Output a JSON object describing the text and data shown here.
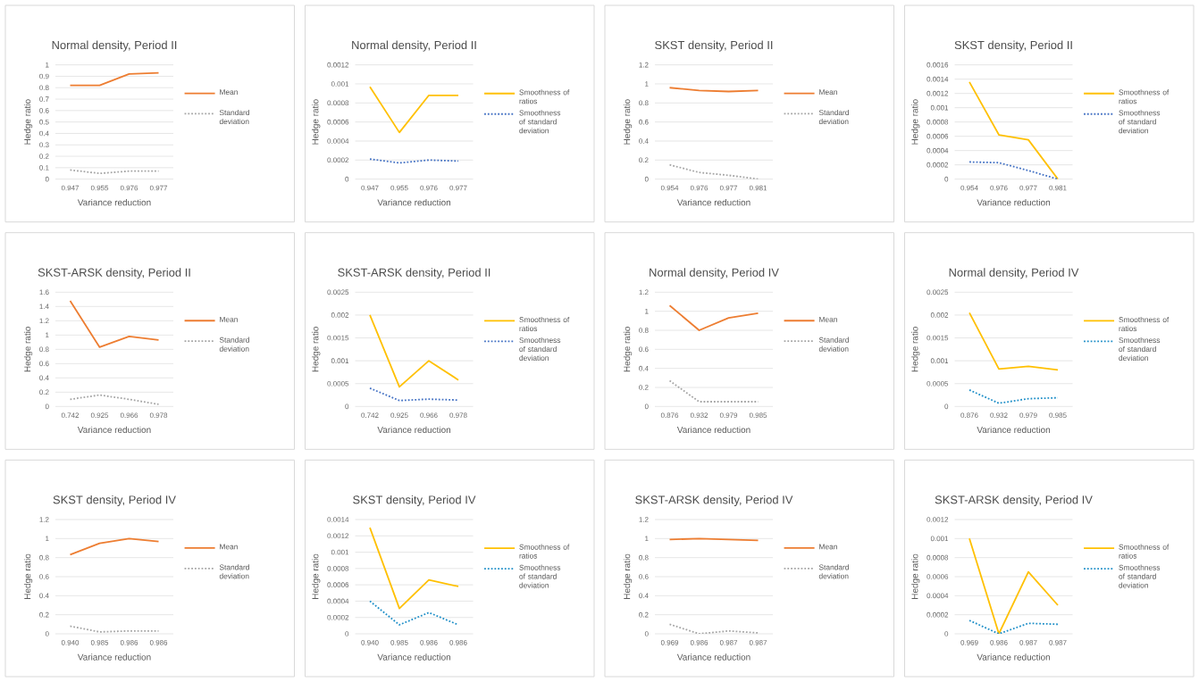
{
  "chart_data": [
    {
      "type": "line",
      "title": "Normal density, Period II",
      "xlabel": "Variance reduction",
      "ylabel": "Hedge ratio",
      "categories": [
        "0.947",
        "0.955",
        "0.976",
        "0.977"
      ],
      "ylim": [
        0,
        1
      ],
      "yticks": [
        0,
        0.1,
        0.2,
        0.3,
        0.4,
        0.5,
        0.6,
        0.7,
        0.8,
        0.9,
        1
      ],
      "grid": "y",
      "legend": "right",
      "marker": "none",
      "series": [
        {
          "name": "Mean",
          "color": "#ed7d31",
          "line_style": "solid",
          "values": [
            0.82,
            0.82,
            0.92,
            0.93
          ]
        },
        {
          "name": "Standard deviation",
          "color": "#a5a5a5",
          "line_style": "dotted",
          "values": [
            0.08,
            0.05,
            0.07,
            0.07
          ]
        }
      ]
    },
    {
      "type": "line",
      "title": "Normal density, Period II",
      "xlabel": "Variance reduction",
      "ylabel": "Hedge ratio",
      "categories": [
        "0.947",
        "0.955",
        "0.976",
        "0.977"
      ],
      "ylim": [
        0,
        0.0012
      ],
      "yticks": [
        0,
        0.0002,
        0.0004,
        0.0006,
        0.0008,
        0.001,
        0.0012
      ],
      "grid": "y",
      "legend": "right",
      "marker": "none",
      "series": [
        {
          "name": "Smoothness of ratios",
          "color": "#ffc000",
          "line_style": "solid",
          "values": [
            0.00097,
            0.00049,
            0.00088,
            0.00088
          ]
        },
        {
          "name": "Smoothness of standard deviation",
          "color": "#4472c4",
          "line_style": "dotted",
          "values": [
            0.00021,
            0.00017,
            0.0002,
            0.00019
          ]
        }
      ]
    },
    {
      "type": "line",
      "title": "SKST density, Period II",
      "xlabel": "Variance reduction",
      "ylabel": "Hedge ratio",
      "categories": [
        "0.954",
        "0.976",
        "0.977",
        "0.981"
      ],
      "ylim": [
        0,
        1.2
      ],
      "yticks": [
        0,
        0.2,
        0.4,
        0.6,
        0.8,
        1,
        1.2
      ],
      "grid": "y",
      "legend": "right",
      "marker": "none",
      "series": [
        {
          "name": "Mean",
          "color": "#ed7d31",
          "line_style": "solid",
          "values": [
            0.96,
            0.93,
            0.92,
            0.93
          ]
        },
        {
          "name": "Standard deviation",
          "color": "#a5a5a5",
          "line_style": "dotted",
          "values": [
            0.15,
            0.07,
            0.04,
            0.0
          ]
        }
      ]
    },
    {
      "type": "line",
      "title": "SKST density, Period II",
      "xlabel": "Variance reduction",
      "ylabel": "Hedge ratio",
      "categories": [
        "0.954",
        "0.976",
        "0.977",
        "0.981"
      ],
      "ylim": [
        0,
        0.0016
      ],
      "yticks": [
        0,
        0.0002,
        0.0004,
        0.0006,
        0.0008,
        0.001,
        0.0012,
        0.0014,
        0.0016
      ],
      "grid": "y",
      "legend": "right",
      "marker": "none",
      "series": [
        {
          "name": "Smoothness of ratios",
          "color": "#ffc000",
          "line_style": "solid",
          "values": [
            0.00136,
            0.00062,
            0.00055,
            0.0
          ]
        },
        {
          "name": "Smoothness of standard deviation",
          "color": "#4472c4",
          "line_style": "dotted",
          "values": [
            0.00024,
            0.00023,
            0.00012,
            0.0
          ]
        }
      ]
    },
    {
      "type": "line",
      "title": "SKST-ARSK density, Period II",
      "xlabel": "Variance reduction",
      "ylabel": "Hedge ratio",
      "categories": [
        "0.742",
        "0.925",
        "0.966",
        "0.978"
      ],
      "ylim": [
        0,
        1.6
      ],
      "yticks": [
        0,
        0.2,
        0.4,
        0.6,
        0.8,
        1,
        1.2,
        1.4,
        1.6
      ],
      "grid": "y",
      "legend": "right",
      "marker": "none",
      "series": [
        {
          "name": "Mean",
          "color": "#ed7d31",
          "line_style": "solid",
          "values": [
            1.48,
            0.83,
            0.98,
            0.93
          ]
        },
        {
          "name": "Standard deviation",
          "color": "#a5a5a5",
          "line_style": "dotted",
          "values": [
            0.1,
            0.16,
            0.1,
            0.03
          ]
        }
      ]
    },
    {
      "type": "line",
      "title": "SKST-ARSK density, Period II",
      "xlabel": "Variance reduction",
      "ylabel": "Hedge ratio",
      "categories": [
        "0.742",
        "0.925",
        "0.966",
        "0.978"
      ],
      "ylim": [
        0,
        0.0025
      ],
      "yticks": [
        0,
        0.0005,
        0.001,
        0.0015,
        0.002,
        0.0025
      ],
      "grid": "y",
      "legend": "right",
      "marker": "none",
      "series": [
        {
          "name": "Smoothness of ratios",
          "color": "#ffc000",
          "line_style": "solid",
          "values": [
            0.002,
            0.00043,
            0.001,
            0.00058
          ]
        },
        {
          "name": "Smoothness of standard deviation",
          "color": "#4472c4",
          "line_style": "dotted",
          "values": [
            0.0004,
            0.00013,
            0.00016,
            0.00014
          ]
        }
      ]
    },
    {
      "type": "line",
      "title": "Normal density, Period IV",
      "xlabel": "Variance reduction",
      "ylabel": "Hedge ratio",
      "categories": [
        "0.876",
        "0.932",
        "0.979",
        "0.985"
      ],
      "ylim": [
        0,
        1.2
      ],
      "yticks": [
        0,
        0.2,
        0.4,
        0.6,
        0.8,
        1,
        1.2
      ],
      "grid": "y",
      "legend": "right",
      "marker": "none",
      "series": [
        {
          "name": "Mean",
          "color": "#ed7d31",
          "line_style": "solid",
          "values": [
            1.06,
            0.8,
            0.93,
            0.98
          ]
        },
        {
          "name": "Standard deviation",
          "color": "#a5a5a5",
          "line_style": "dotted",
          "values": [
            0.27,
            0.05,
            0.05,
            0.05
          ]
        }
      ]
    },
    {
      "type": "line",
      "title": "Normal density, Period IV",
      "xlabel": "Variance reduction",
      "ylabel": "Hedge ratio",
      "categories": [
        "0.876",
        "0.932",
        "0.979",
        "0.985"
      ],
      "ylim": [
        0,
        0.0025
      ],
      "yticks": [
        0,
        0.0005,
        0.001,
        0.0015,
        0.002,
        0.0025
      ],
      "grid": "y",
      "legend": "right",
      "marker": "none",
      "series": [
        {
          "name": "Smoothness of ratios",
          "color": "#ffc000",
          "line_style": "solid",
          "values": [
            0.00205,
            0.00082,
            0.00088,
            0.0008
          ]
        },
        {
          "name": "Smoothness of standard deviation",
          "color": "#1f8fc8",
          "line_style": "dotted",
          "values": [
            0.00036,
            7e-05,
            0.00017,
            0.00019
          ]
        }
      ]
    },
    {
      "type": "line",
      "title": "SKST density, Period IV",
      "xlabel": "Variance reduction",
      "ylabel": "Hedge ratio",
      "categories": [
        "0.940",
        "0.985",
        "0.986",
        "0.986"
      ],
      "ylim": [
        0,
        1.2
      ],
      "yticks": [
        0,
        0.2,
        0.4,
        0.6,
        0.8,
        1,
        1.2
      ],
      "grid": "y",
      "legend": "right",
      "marker": "none",
      "series": [
        {
          "name": "Mean",
          "color": "#ed7d31",
          "line_style": "solid",
          "values": [
            0.83,
            0.95,
            1.0,
            0.97
          ]
        },
        {
          "name": "Standard deviation",
          "color": "#a5a5a5",
          "line_style": "dotted",
          "values": [
            0.08,
            0.02,
            0.03,
            0.03
          ]
        }
      ]
    },
    {
      "type": "line",
      "title": "SKST density, Period IV",
      "xlabel": "Variance reduction",
      "ylabel": "Hedge ratio",
      "categories": [
        "0.940",
        "0.985",
        "0.986",
        "0.986"
      ],
      "ylim": [
        0,
        0.0014
      ],
      "yticks": [
        0,
        0.0002,
        0.0004,
        0.0006,
        0.0008,
        0.001,
        0.0012,
        0.0014
      ],
      "grid": "y",
      "legend": "right",
      "marker": "none",
      "series": [
        {
          "name": "Smoothness of ratios",
          "color": "#ffc000",
          "line_style": "solid",
          "values": [
            0.0013,
            0.00031,
            0.00066,
            0.00058
          ]
        },
        {
          "name": "Smoothness of standard deviation",
          "color": "#1f8fc8",
          "line_style": "dotted",
          "values": [
            0.0004,
            0.00011,
            0.00026,
            0.00011
          ]
        }
      ]
    },
    {
      "type": "line",
      "title": "SKST-ARSK density, Period IV",
      "xlabel": "Variance reduction",
      "ylabel": "Hedge ratio",
      "categories": [
        "0.969",
        "0.986",
        "0.987",
        "0.987"
      ],
      "ylim": [
        0,
        1.2
      ],
      "yticks": [
        0,
        0.2,
        0.4,
        0.6,
        0.8,
        1,
        1.2
      ],
      "grid": "y",
      "legend": "right",
      "marker": "none",
      "series": [
        {
          "name": "Mean",
          "color": "#ed7d31",
          "line_style": "solid",
          "values": [
            0.99,
            1.0,
            0.99,
            0.98
          ]
        },
        {
          "name": "Standard deviation",
          "color": "#a5a5a5",
          "line_style": "dotted",
          "values": [
            0.1,
            0.0,
            0.03,
            0.01
          ]
        }
      ]
    },
    {
      "type": "line",
      "title": "SKST-ARSK density, Period IV",
      "xlabel": "Variance reduction",
      "ylabel": "Hedge ratio",
      "categories": [
        "0.969",
        "0.986",
        "0.987",
        "0.987"
      ],
      "ylim": [
        0,
        0.0012
      ],
      "yticks": [
        0,
        0.0002,
        0.0004,
        0.0006,
        0.0008,
        0.001,
        0.0012
      ],
      "grid": "y",
      "legend": "right",
      "marker": "none",
      "series": [
        {
          "name": "Smoothness of ratios",
          "color": "#ffc000",
          "line_style": "solid",
          "values": [
            0.001,
            0.0,
            0.00065,
            0.0003
          ]
        },
        {
          "name": "Smoothness of standard deviation",
          "color": "#1f8fc8",
          "line_style": "dotted",
          "values": [
            0.00014,
            0.0,
            0.00011,
            0.0001
          ]
        }
      ]
    }
  ]
}
